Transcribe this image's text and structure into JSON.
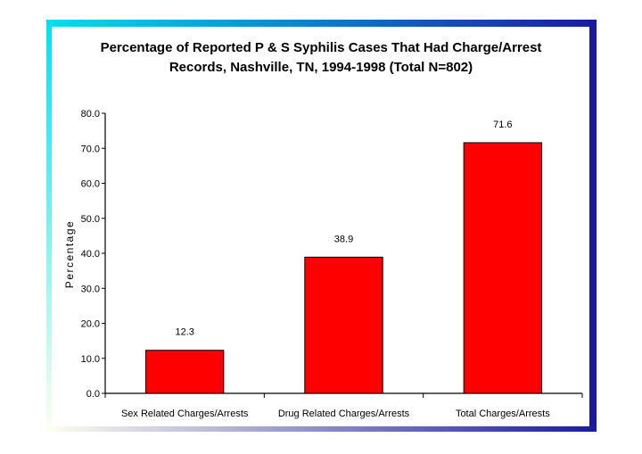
{
  "colors": {
    "frame_top_left": "#00e0f0",
    "frame_top_right": "#1a1aa0",
    "frame_bottom_left": "#fffff0",
    "frame_bottom_right": "#1a1aa0",
    "bar_fill": "#ff0000",
    "bar_stroke": "#000000"
  },
  "chart_data": {
    "type": "bar",
    "title_lines": [
      "Percentage of Reported P & S Syphilis Cases That Had Charge/Arrest",
      "Records, Nashville, TN, 1994-1998 (Total N=802)"
    ],
    "categories": [
      "Sex Related Charges/Arrests",
      "Drug Related Charges/Arrests",
      "Total Charges/Arrests"
    ],
    "values": [
      12.3,
      38.9,
      71.6
    ],
    "data_labels": [
      "12.3",
      "38.9",
      "71.6"
    ],
    "ylabel": "Percentage",
    "xlabel": "",
    "ylim": [
      0,
      80
    ],
    "yticks": [
      "0.0",
      "10.0",
      "20.0",
      "30.0",
      "40.0",
      "50.0",
      "60.0",
      "70.0",
      "80.0"
    ],
    "grid": false,
    "legend": "none"
  }
}
